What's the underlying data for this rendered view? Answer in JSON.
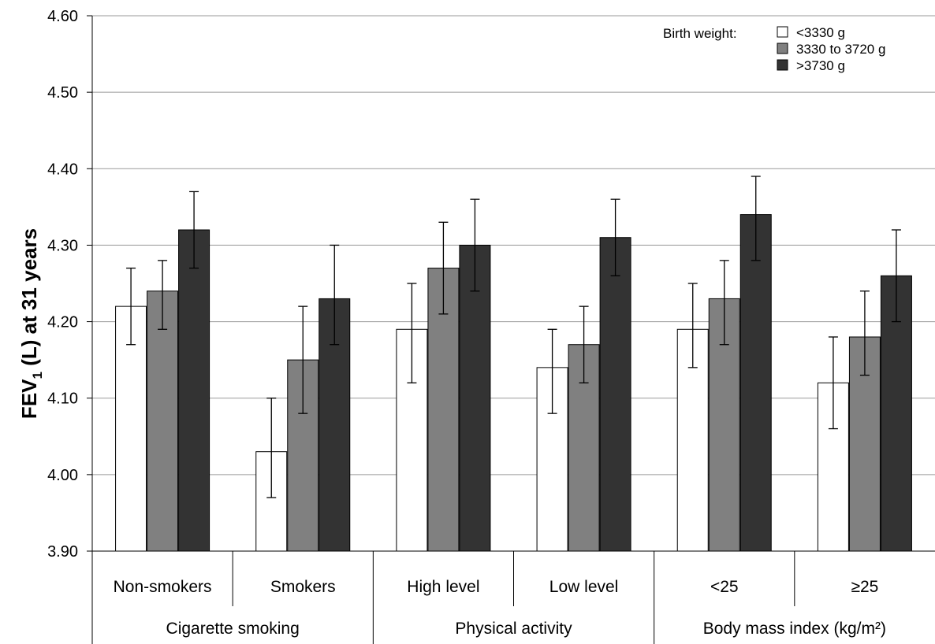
{
  "chart_data": {
    "type": "bar",
    "ylabel_main": "FEV",
    "ylabel_sub": "1",
    "ylabel_rest": " (L) at 31 years",
    "ylim": [
      3.9,
      4.6
    ],
    "yticks": [
      "3.90",
      "4.00",
      "4.10",
      "4.20",
      "4.30",
      "4.40",
      "4.50",
      "4.60"
    ],
    "grid": true,
    "legend_title": "Birth weight:",
    "legend_position": "top-right",
    "categories": [
      "Non-smokers",
      "Smokers",
      "High level",
      "Low level",
      "<25",
      "≥25"
    ],
    "groups": [
      {
        "label": "Cigarette smoking",
        "span": 2
      },
      {
        "label": "Physical activity",
        "span": 2
      },
      {
        "label": "Body mass index (kg/m²)",
        "span": 2
      }
    ],
    "series": [
      {
        "name": "<3330 g",
        "color": "#ffffff",
        "values": [
          4.22,
          4.03,
          4.19,
          4.14,
          4.19,
          4.12
        ],
        "lower": [
          4.17,
          3.97,
          4.12,
          4.08,
          4.14,
          4.06
        ],
        "upper": [
          4.27,
          4.1,
          4.25,
          4.19,
          4.25,
          4.18
        ]
      },
      {
        "name": "3330 to 3720 g",
        "color": "#808080",
        "values": [
          4.24,
          4.15,
          4.27,
          4.17,
          4.23,
          4.18
        ],
        "lower": [
          4.19,
          4.08,
          4.21,
          4.12,
          4.17,
          4.13
        ],
        "upper": [
          4.28,
          4.22,
          4.33,
          4.22,
          4.28,
          4.24
        ]
      },
      {
        "name": ">3730 g",
        "color": "#333333",
        "values": [
          4.32,
          4.23,
          4.3,
          4.31,
          4.34,
          4.26
        ],
        "lower": [
          4.27,
          4.17,
          4.24,
          4.26,
          4.28,
          4.2
        ],
        "upper": [
          4.37,
          4.3,
          4.36,
          4.36,
          4.39,
          4.32
        ]
      }
    ]
  }
}
